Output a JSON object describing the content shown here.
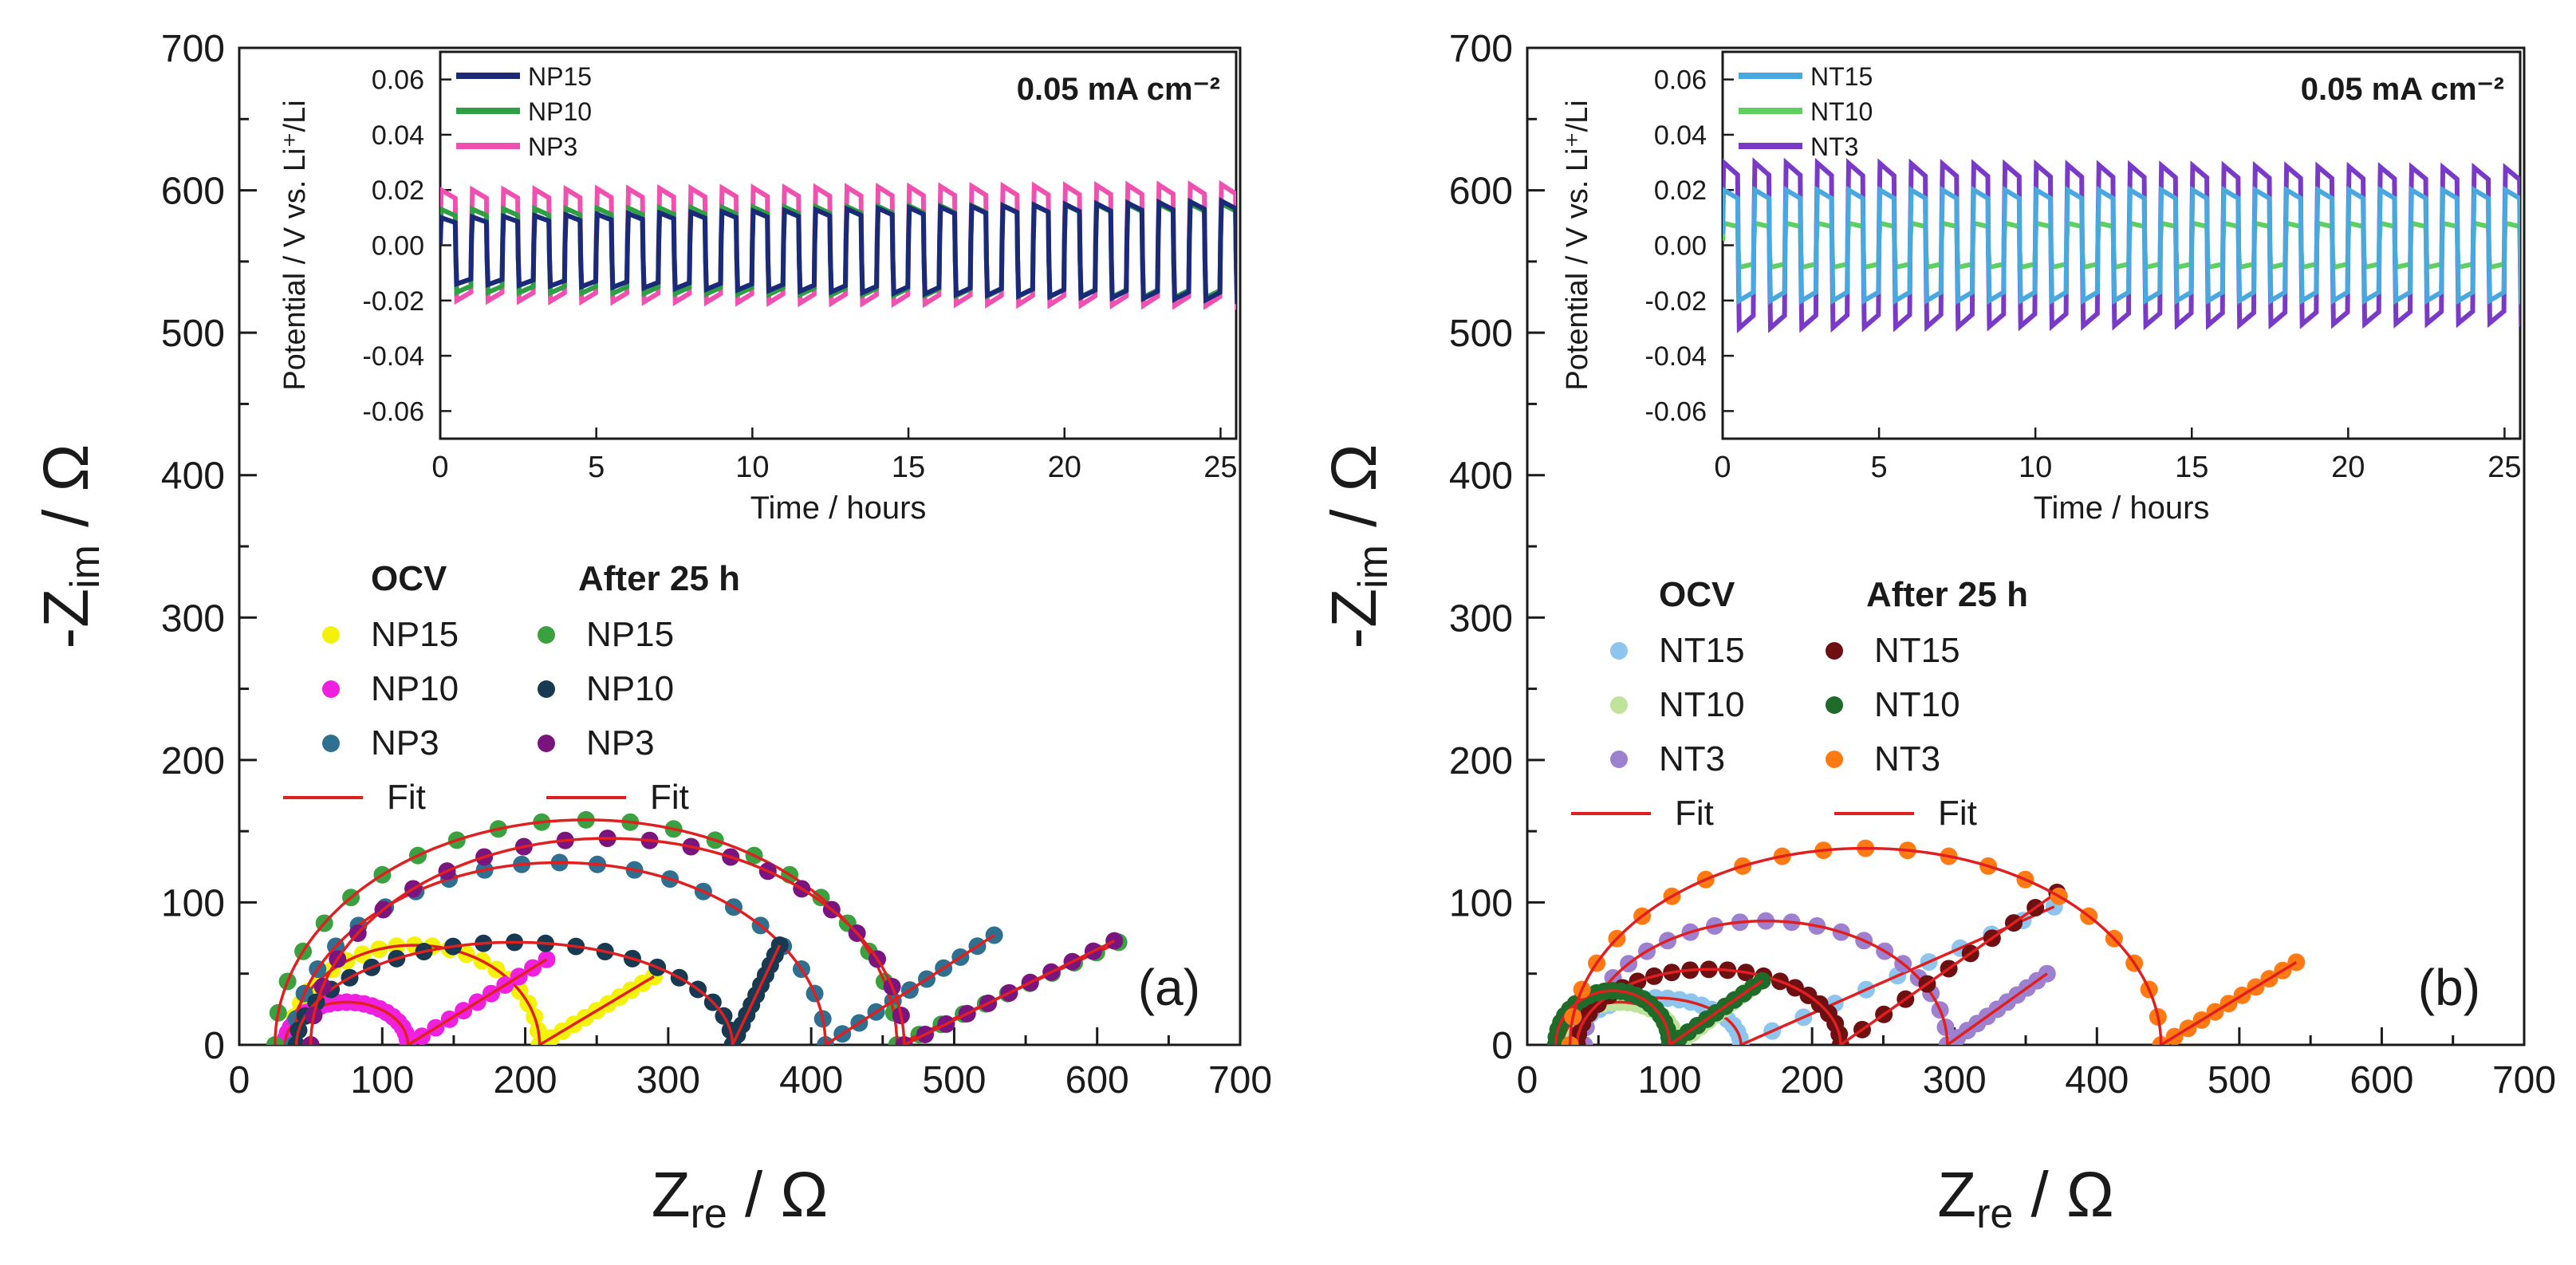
{
  "chart_data": [
    {
      "type": "scatter",
      "panel_label": "(a)",
      "xlabel": "Z",
      "xlabel_sub": "re",
      "xlabel_unit": " / Ω",
      "ylabel": "-Z",
      "ylabel_sub": "im",
      "ylabel_unit": " / Ω",
      "xlim": [
        0,
        700
      ],
      "ylim": [
        0,
        700
      ],
      "xticks": [
        0,
        100,
        200,
        300,
        400,
        500,
        600,
        700
      ],
      "yticks": [
        0,
        100,
        200,
        300,
        400,
        500,
        600,
        700
      ],
      "legend": {
        "ocv_title": "OCV",
        "after_title": "After 25 h",
        "fit_label": "Fit",
        "ocv": [
          {
            "name": "NP15",
            "color": "#f5f20a"
          },
          {
            "name": "NP10",
            "color": "#f020e0"
          },
          {
            "name": "NP3",
            "color": "#2f6f8f"
          }
        ],
        "after": [
          {
            "name": "NP15",
            "color": "#3aa040"
          },
          {
            "name": "NP10",
            "color": "#173a52"
          },
          {
            "name": "NP3",
            "color": "#7a1580"
          }
        ]
      },
      "fit_color": "#e02020",
      "series": [
        {
          "name": "NP15 (OCV)",
          "color": "#f5f20a",
          "r0": 35,
          "r1": 210,
          "h": 70,
          "tail_end": [
            290,
            48
          ]
        },
        {
          "name": "NP10 (OCV)",
          "color": "#f020e0",
          "r0": 32,
          "r1": 118,
          "h": 30,
          "tail_end": [
            215,
            60
          ]
        },
        {
          "name": "NP3 (OCV)",
          "color": "#2f6f8f",
          "r0": 38,
          "r1": 410,
          "h": 128,
          "tail_end": [
            528,
            77
          ]
        },
        {
          "name": "NP15 (After 25 h)",
          "color": "#3aa040",
          "r0": 25,
          "r1": 460,
          "h": 158,
          "tail_end": [
            615,
            72
          ]
        },
        {
          "name": "NP10 (After 25 h)",
          "color": "#173a52",
          "r0": 40,
          "r1": 345,
          "h": 72,
          "tail_end": [
            378,
            70
          ]
        },
        {
          "name": "NP3 (After 25 h)",
          "color": "#7a1580",
          "r0": 50,
          "r1": 465,
          "h": 145,
          "tail_end": [
            612,
            73
          ]
        }
      ],
      "inset": {
        "xlabel": "Time / hours",
        "ylabel": "Potential / V vs. Li⁺/Li",
        "annotation": "0.05 mA cm⁻²",
        "xlim": [
          0,
          25.5
        ],
        "ylim": [
          -0.07,
          0.07
        ],
        "xticks": [
          "0",
          "5",
          "10",
          "15",
          "20",
          "25"
        ],
        "yticks": [
          "-0.06",
          "-0.04",
          "-0.02",
          "0.00",
          "0.02",
          "0.04",
          "0.06"
        ],
        "cycles": 26,
        "series": [
          {
            "name": "NP15",
            "color": "#1a2a78",
            "amp_start": 0.012,
            "amp_end": 0.018,
            "offset": -0.002
          },
          {
            "name": "NP10",
            "color": "#2ea043",
            "amp_start": 0.015,
            "amp_end": 0.017,
            "offset": -0.002
          },
          {
            "name": "NP3",
            "color": "#f050b0",
            "amp_start": 0.02,
            "amp_end": 0.022,
            "offset": 0.0
          }
        ]
      }
    },
    {
      "type": "scatter",
      "panel_label": "(b)",
      "xlabel": "Z",
      "xlabel_sub": "re",
      "xlabel_unit": " / Ω",
      "ylabel": "-Z",
      "ylabel_sub": "im",
      "ylabel_unit": " / Ω",
      "xlim": [
        0,
        700
      ],
      "ylim": [
        0,
        700
      ],
      "xticks": [
        0,
        100,
        200,
        300,
        400,
        500,
        600,
        700
      ],
      "yticks": [
        0,
        100,
        200,
        300,
        400,
        500,
        600,
        700
      ],
      "legend": {
        "ocv_title": "OCV",
        "after_title": "After 25 h",
        "fit_label": "Fit",
        "ocv": [
          {
            "name": "NT15",
            "color": "#8ec5ee"
          },
          {
            "name": "NT10",
            "color": "#bfe39a"
          },
          {
            "name": "NT3",
            "color": "#9e80d0"
          }
        ],
        "after": [
          {
            "name": "NT15",
            "color": "#6e0f12"
          },
          {
            "name": "NT10",
            "color": "#1f6b2a"
          },
          {
            "name": "NT3",
            "color": "#ff7a12"
          }
        ]
      },
      "fit_color": "#e02020",
      "series": [
        {
          "name": "NT15 (OCV)",
          "color": "#8ec5ee",
          "r0": 30,
          "r1": 150,
          "h": 33,
          "tail_end": [
            370,
            97
          ]
        },
        {
          "name": "NT10 (OCV)",
          "color": "#bfe39a",
          "r0": 25,
          "r1": 105,
          "h": 30,
          "tail_end": [
            160,
            42
          ]
        },
        {
          "name": "NT3 (OCV)",
          "color": "#9e80d0",
          "r0": 40,
          "r1": 295,
          "h": 87,
          "tail_end": [
            365,
            50
          ]
        },
        {
          "name": "NT15 (After 25 h)",
          "color": "#6e0f12",
          "r0": 35,
          "r1": 220,
          "h": 53,
          "tail_end": [
            372,
            107
          ]
        },
        {
          "name": "NT10 (After 25 h)",
          "color": "#1f6b2a",
          "r0": 20,
          "r1": 100,
          "h": 38,
          "tail_end": [
            165,
            45
          ]
        },
        {
          "name": "NT3 (After 25 h)",
          "color": "#ff7a12",
          "r0": 30,
          "r1": 445,
          "h": 138,
          "tail_end": [
            540,
            58
          ]
        }
      ],
      "inset": {
        "xlabel": "Time / hours",
        "ylabel": "Potential / V vs. Li⁺/Li",
        "annotation": "0.05 mA cm⁻²",
        "xlim": [
          0,
          25.5
        ],
        "ylim": [
          -0.07,
          0.07
        ],
        "xticks": [
          "0",
          "5",
          "10",
          "15",
          "20",
          "25"
        ],
        "yticks": [
          "-0.06",
          "-0.04",
          "-0.02",
          "0.00",
          "0.02",
          "0.04",
          "0.06"
        ],
        "cycles": 26,
        "series": [
          {
            "name": "NT15",
            "color": "#4aa8e0",
            "amp_start": 0.02,
            "amp_end": 0.02,
            "offset": 0.0
          },
          {
            "name": "NT10",
            "color": "#5fd060",
            "amp_start": 0.008,
            "amp_end": 0.008,
            "offset": 0.0
          },
          {
            "name": "NT3",
            "color": "#7a3ac8",
            "amp_start": 0.03,
            "amp_end": 0.028,
            "offset": 0.0
          }
        ]
      }
    }
  ]
}
